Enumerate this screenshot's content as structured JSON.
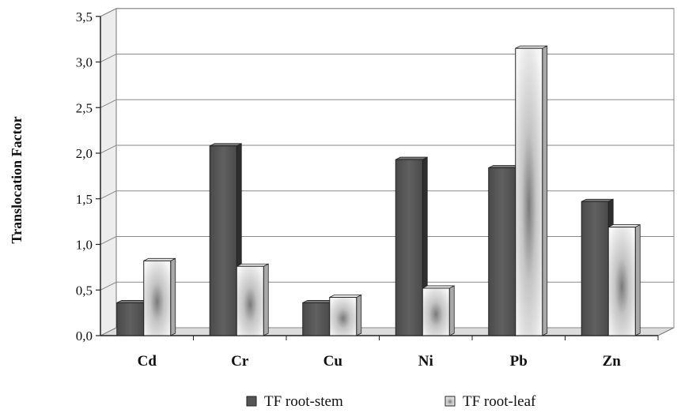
{
  "chart_data": {
    "type": "bar",
    "ylabel": "Translocation Factor",
    "xlabel": "",
    "categories": [
      "Cd",
      "Cr",
      "Cu",
      "Ni",
      "Pb",
      "Zn"
    ],
    "series": [
      {
        "name": "TF root-stem",
        "values": [
          0.36,
          2.08,
          0.36,
          1.93,
          1.84,
          1.47
        ],
        "color": "#555555"
      },
      {
        "name": "TF root-leaf",
        "values": [
          0.82,
          0.76,
          0.42,
          0.52,
          3.15,
          1.19
        ],
        "color": "#d6d6d6"
      }
    ],
    "ylim": [
      0,
      3.5
    ],
    "yticks": [
      "0,0",
      "0,5",
      "1,0",
      "1,5",
      "2,0",
      "2,5",
      "3,0",
      "3,5"
    ],
    "grid": true,
    "legend_position": "bottom",
    "style": "3d-columns"
  }
}
